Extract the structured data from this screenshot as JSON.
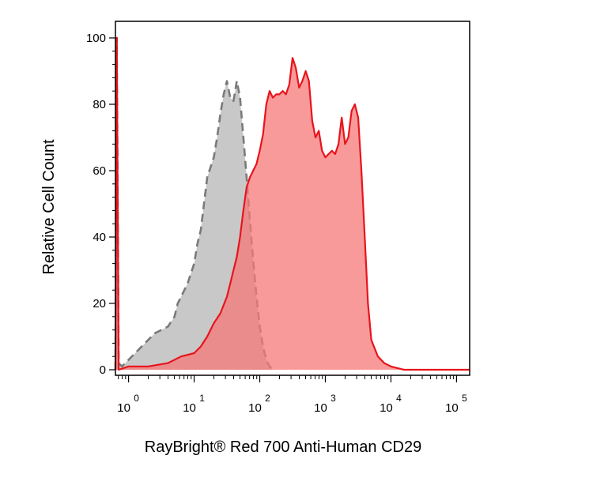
{
  "chart_data": {
    "type": "area",
    "ylabel": "Relative Cell Count",
    "xlabel": "RayBright® Red 700 Anti-Human CD29",
    "x_scale": "log",
    "x_range": [
      -0.2,
      5.2
    ],
    "ylim": [
      0,
      100
    ],
    "y_ticks": [
      "0",
      "20",
      "40",
      "60",
      "80",
      "100"
    ],
    "y_tick_values": [
      0,
      20,
      40,
      60,
      80,
      100
    ],
    "x_ticks": [
      {
        "base": "10",
        "exp": "0",
        "log": 0
      },
      {
        "base": "10",
        "exp": "1",
        "log": 1
      },
      {
        "base": "10",
        "exp": "2",
        "log": 2
      },
      {
        "base": "10",
        "exp": "3",
        "log": 3
      },
      {
        "base": "10",
        "exp": "4",
        "log": 4
      },
      {
        "base": "10",
        "exp": "5",
        "log": 5
      }
    ],
    "series": [
      {
        "style": "grey-dashed",
        "fill": "#c8c8c8",
        "stroke": "#7a7a7a",
        "points": [
          [
            -0.2,
            0
          ],
          [
            -0.18,
            100
          ],
          [
            -0.15,
            2
          ],
          [
            -0.1,
            1
          ],
          [
            -0.05,
            2
          ],
          [
            0.0,
            3
          ],
          [
            0.1,
            5
          ],
          [
            0.2,
            7
          ],
          [
            0.3,
            9
          ],
          [
            0.4,
            11
          ],
          [
            0.5,
            12
          ],
          [
            0.6,
            13
          ],
          [
            0.7,
            16
          ],
          [
            0.75,
            20
          ],
          [
            0.8,
            22
          ],
          [
            0.9,
            26
          ],
          [
            1.0,
            32
          ],
          [
            1.05,
            38
          ],
          [
            1.1,
            42
          ],
          [
            1.15,
            50
          ],
          [
            1.2,
            58
          ],
          [
            1.3,
            64
          ],
          [
            1.35,
            70
          ],
          [
            1.4,
            77
          ],
          [
            1.45,
            83
          ],
          [
            1.5,
            87
          ],
          [
            1.55,
            82
          ],
          [
            1.6,
            81
          ],
          [
            1.65,
            87
          ],
          [
            1.7,
            82
          ],
          [
            1.75,
            70
          ],
          [
            1.8,
            58
          ],
          [
            1.85,
            45
          ],
          [
            1.9,
            33
          ],
          [
            1.95,
            22
          ],
          [
            2.0,
            13
          ],
          [
            2.05,
            7
          ],
          [
            2.1,
            3
          ],
          [
            2.15,
            1
          ],
          [
            2.2,
            0
          ]
        ]
      },
      {
        "style": "red-solid",
        "fill": "rgba(247,120,120,0.75)",
        "stroke": "#e8141c",
        "points": [
          [
            -0.2,
            0
          ],
          [
            -0.18,
            100
          ],
          [
            -0.15,
            0
          ],
          [
            0.0,
            1
          ],
          [
            0.3,
            1
          ],
          [
            0.6,
            2
          ],
          [
            0.8,
            4
          ],
          [
            1.0,
            5
          ],
          [
            1.1,
            7
          ],
          [
            1.2,
            10
          ],
          [
            1.3,
            14
          ],
          [
            1.4,
            17
          ],
          [
            1.5,
            22
          ],
          [
            1.55,
            26
          ],
          [
            1.6,
            30
          ],
          [
            1.65,
            34
          ],
          [
            1.7,
            40
          ],
          [
            1.75,
            48
          ],
          [
            1.8,
            55
          ],
          [
            1.85,
            58
          ],
          [
            1.9,
            60
          ],
          [
            1.95,
            62
          ],
          [
            2.0,
            66
          ],
          [
            2.05,
            71
          ],
          [
            2.1,
            80
          ],
          [
            2.15,
            84
          ],
          [
            2.2,
            82
          ],
          [
            2.25,
            83
          ],
          [
            2.3,
            83
          ],
          [
            2.35,
            84
          ],
          [
            2.4,
            83
          ],
          [
            2.45,
            86
          ],
          [
            2.5,
            94
          ],
          [
            2.55,
            91
          ],
          [
            2.6,
            85
          ],
          [
            2.65,
            87
          ],
          [
            2.7,
            90
          ],
          [
            2.75,
            87
          ],
          [
            2.8,
            75
          ],
          [
            2.85,
            70
          ],
          [
            2.9,
            72
          ],
          [
            2.95,
            66
          ],
          [
            3.0,
            64
          ],
          [
            3.05,
            65
          ],
          [
            3.1,
            66
          ],
          [
            3.15,
            65
          ],
          [
            3.2,
            68
          ],
          [
            3.25,
            76
          ],
          [
            3.3,
            68
          ],
          [
            3.35,
            70
          ],
          [
            3.4,
            78
          ],
          [
            3.45,
            80
          ],
          [
            3.5,
            76
          ],
          [
            3.55,
            60
          ],
          [
            3.6,
            40
          ],
          [
            3.65,
            20
          ],
          [
            3.7,
            9
          ],
          [
            3.8,
            4
          ],
          [
            3.9,
            2
          ],
          [
            4.0,
            1
          ],
          [
            4.2,
            0
          ],
          [
            4.6,
            0
          ],
          [
            5.0,
            0
          ],
          [
            5.2,
            0
          ]
        ]
      }
    ]
  }
}
